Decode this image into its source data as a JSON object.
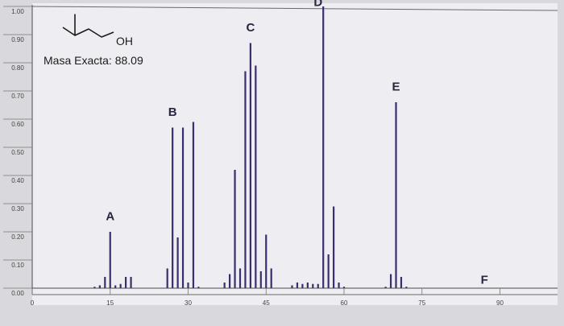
{
  "chart_data": {
    "type": "bar",
    "title": "",
    "xlabel": "",
    "ylabel": "",
    "xlim": [
      0,
      105
    ],
    "ylim": [
      0,
      1.0
    ],
    "x_ticks": [
      0,
      15,
      30,
      45,
      60,
      75,
      90
    ],
    "x_tick_labels": [
      "0",
      "15",
      "30",
      "45",
      "60",
      "75",
      "90"
    ],
    "y_ticks": [
      0,
      0.1,
      0.2,
      0.3,
      0.4,
      0.5,
      0.6,
      0.7,
      0.8,
      0.9,
      1.0
    ],
    "y_tick_labels": [
      "0.00",
      "0.10",
      "0.20",
      "0.30",
      "0.40",
      "0.50",
      "0.60",
      "0.70",
      "0.80",
      "0.90",
      "1.00"
    ],
    "grid": false,
    "series": [
      {
        "color": "#3b2d6e",
        "x": [
          12,
          13,
          14,
          15,
          16,
          17,
          18,
          19,
          26,
          27,
          28,
          29,
          30,
          31,
          32,
          37,
          38,
          39,
          40,
          41,
          42,
          43,
          44,
          45,
          46,
          50,
          51,
          52,
          53,
          54,
          55,
          56,
          57,
          58,
          59,
          60,
          68,
          69,
          70,
          71,
          72
        ],
        "values": [
          0.005,
          0.01,
          0.04,
          0.2,
          0.01,
          0.015,
          0.04,
          0.04,
          0.07,
          0.57,
          0.18,
          0.57,
          0.02,
          0.59,
          0.005,
          0.02,
          0.05,
          0.42,
          0.07,
          0.77,
          0.87,
          0.79,
          0.06,
          0.19,
          0.07,
          0.01,
          0.02,
          0.015,
          0.02,
          0.015,
          0.015,
          1.0,
          0.12,
          0.29,
          0.02,
          0.005,
          0.005,
          0.05,
          0.66,
          0.04,
          0.005
        ]
      }
    ],
    "peak_labels": [
      {
        "text": "A",
        "x": 15,
        "y": 0.23
      },
      {
        "text": "B",
        "x": 27,
        "y": 0.6
      },
      {
        "text": "C",
        "x": 42,
        "y": 0.9
      },
      {
        "text": "D",
        "x": 55,
        "y": 0.99
      },
      {
        "text": "E",
        "x": 70,
        "y": 0.69
      },
      {
        "text": "F",
        "x": 87,
        "y": 0.005
      }
    ],
    "annotations": {
      "molecule_group": "OH",
      "exact_mass": "Masa Exacta: 88.09"
    }
  }
}
